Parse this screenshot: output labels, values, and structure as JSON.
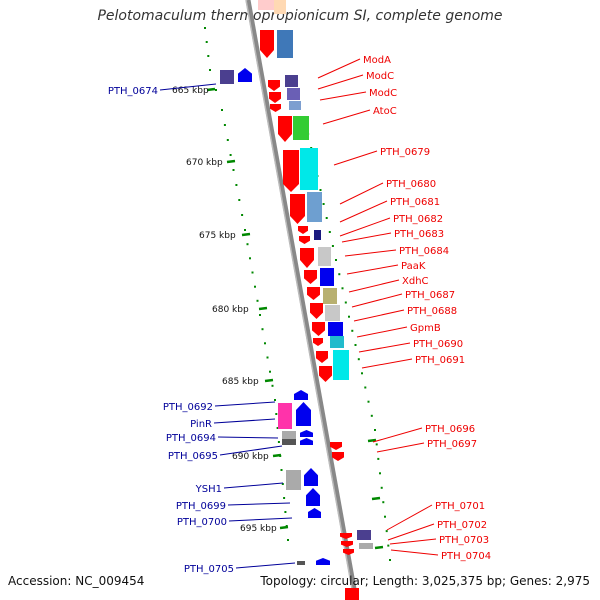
{
  "title": "Pelotomaculum thermopropionicum SI, complete genome",
  "footer": {
    "accession": "Accession: NC_009454",
    "topology": "Topology: circular; Length: 3,025,375 bp; Genes: 2,975"
  },
  "colors": {
    "forward_label": "#ee0000",
    "reverse_label": "#000099",
    "backbone": "#888888",
    "tick": "#008800",
    "forward_gene": "#ff0000",
    "reverse_gene": "#0000ee"
  },
  "scale": {
    "unit": "kbp",
    "major_ticks": [
      "665 kbp",
      "670 kbp",
      "675 kbp",
      "680 kbp",
      "685 kbp",
      "690 kbp",
      "695 kbp"
    ]
  },
  "forward_labels": [
    "ModA",
    "ModC",
    "ModC",
    "AtoC",
    "PTH_0679",
    "PTH_0680",
    "PTH_0681",
    "PTH_0682",
    "PTH_0683",
    "PTH_0684",
    "PaaK",
    "XdhC",
    "PTH_0687",
    "PTH_0688",
    "GpmB",
    "PTH_0690",
    "PTH_0691",
    "PTH_0696",
    "PTH_0697",
    "PTH_0701",
    "PTH_0702",
    "PTH_0703",
    "PTH_0704"
  ],
  "reverse_labels": [
    "PTH_0674",
    "PTH_0692",
    "PinR",
    "PTH_0694",
    "PTH_0695",
    "YSH1",
    "PTH_0699",
    "PTH_0700",
    "PTH_0705"
  ]
}
